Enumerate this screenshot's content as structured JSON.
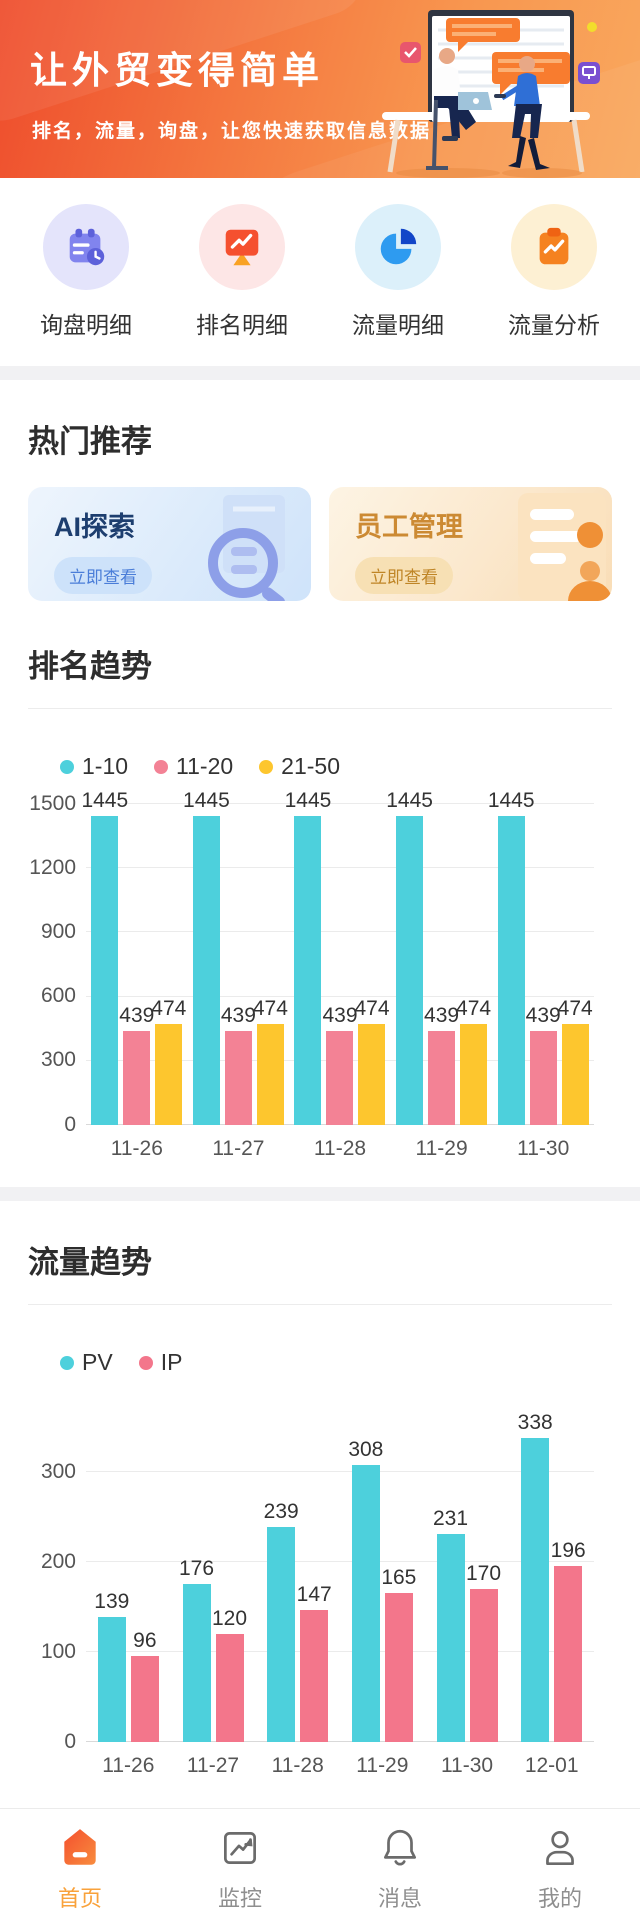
{
  "header": {
    "title": "让外贸变得简单",
    "subtitle": "排名，流量，询盘，让您快速获取信息数据"
  },
  "quick_actions": [
    {
      "label": "询盘明细",
      "icon": "calendar-icon"
    },
    {
      "label": "排名明细",
      "icon": "monitor-trend-icon"
    },
    {
      "label": "流量明细",
      "icon": "pie-chart-icon"
    },
    {
      "label": "流量分析",
      "icon": "clipboard-trend-icon"
    }
  ],
  "hot_section": {
    "title": "热门推荐",
    "cards": [
      {
        "title": "AI探索",
        "action": "立即查看",
        "icon": "magnifier-document-icon"
      },
      {
        "title": "员工管理",
        "action": "立即查看",
        "icon": "staff-list-icon"
      }
    ]
  },
  "rank_section": {
    "title": "排名趋势"
  },
  "traffic_section": {
    "title": "流量趋势"
  },
  "chart_data": [
    {
      "type": "bar",
      "title": "排名趋势",
      "categories": [
        "11-26",
        "11-27",
        "11-28",
        "11-29",
        "11-30"
      ],
      "series": [
        {
          "name": "1-10",
          "color": "#4dd0dc",
          "values": [
            1445,
            1445,
            1445,
            1445,
            1445
          ]
        },
        {
          "name": "11-20",
          "color": "#f38295",
          "values": [
            439,
            439,
            439,
            439,
            439
          ]
        },
        {
          "name": "21-50",
          "color": "#fdc62e",
          "values": [
            474,
            474,
            474,
            474,
            474
          ]
        }
      ],
      "ylim": [
        0,
        1500
      ],
      "yticks": [
        0,
        300,
        600,
        900,
        1200,
        1500
      ],
      "grid": true,
      "legend_position": "top-left",
      "data_labels": true
    },
    {
      "type": "bar",
      "title": "流量趋势",
      "categories": [
        "11-26",
        "11-27",
        "11-28",
        "11-29",
        "11-30",
        "12-01"
      ],
      "series": [
        {
          "name": "PV",
          "color": "#4dd0dc",
          "values": [
            139,
            176,
            239,
            308,
            231,
            338
          ]
        },
        {
          "name": "IP",
          "color": "#f3768b",
          "values": [
            96,
            120,
            147,
            165,
            170,
            196
          ]
        }
      ],
      "ylim": [
        0,
        300
      ],
      "yticks": [
        0,
        100,
        200,
        300
      ],
      "grid": true,
      "legend_position": "top-left",
      "data_labels": true
    }
  ],
  "tab_bar": [
    {
      "label": "首页",
      "active": true,
      "icon": "home-icon"
    },
    {
      "label": "监控",
      "active": false,
      "icon": "monitor-icon"
    },
    {
      "label": "消息",
      "active": false,
      "icon": "bell-icon"
    },
    {
      "label": "我的",
      "active": false,
      "icon": "user-icon"
    }
  ],
  "colors": {
    "accent_orange": "#f9a23b",
    "hero_gradient_start": "#ee4c2c",
    "hero_gradient_end": "#f9a85e",
    "teal": "#4dd0dc",
    "pink": "#f38295",
    "yellow": "#fdc62e"
  }
}
